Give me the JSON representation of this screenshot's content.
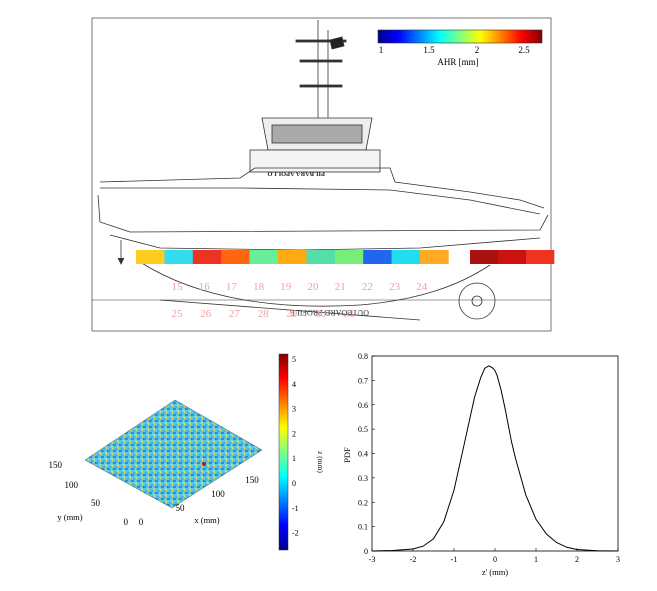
{
  "panel_a": {
    "ship_name": "PILBARA APOLLO",
    "drawing_caption": "OUTBOARD PROFILE",
    "colorbar": {
      "label": "AHR [mm]",
      "ticks": [
        "1",
        "1.5",
        "2",
        "2.5"
      ],
      "range": [
        1,
        2.6
      ]
    },
    "regions_row_top": [
      {
        "id": "15",
        "color": "#ffcc22"
      },
      {
        "id": "16",
        "color": "#33ddee"
      },
      {
        "id": "17",
        "color": "#ee3322"
      },
      {
        "id": "18",
        "color": "#ff6611"
      },
      {
        "id": "19",
        "color": "#66ee99"
      },
      {
        "id": "20",
        "color": "#ffaa11"
      },
      {
        "id": "21",
        "color": "#55ddaa"
      },
      {
        "id": "22",
        "color": "#77ee77"
      },
      {
        "id": "23",
        "color": "#2266ee"
      },
      {
        "id": "24",
        "color": "#22ddee"
      },
      {
        "id": "24b",
        "color": "#ffaa22"
      }
    ],
    "regions_row_bottom": [
      "25",
      "26",
      "27",
      "28",
      "29",
      "30",
      "31"
    ],
    "stern_blocks": [
      "#aa1111",
      "#cc1111",
      "#ee3322"
    ],
    "label_color": "#f0a0a0"
  },
  "panel_b": {
    "xlabel": "x (mm)",
    "ylabel": "y (mm)",
    "x_ticks": [
      "0",
      "50",
      "100",
      "150"
    ],
    "y_ticks": [
      "0",
      "50",
      "100",
      "150"
    ],
    "colorbar": {
      "label": "z (mm)",
      "ticks": [
        "5",
        "4",
        "3",
        "2",
        "1",
        "0",
        "-1",
        "-2"
      ],
      "range": [
        -2.7,
        5.2
      ]
    }
  },
  "chart_data": {
    "type": "line",
    "xlabel": "z' (mm)",
    "ylabel": "PDF",
    "xlim": [
      -3,
      3
    ],
    "ylim": [
      0,
      0.8
    ],
    "x_ticks": [
      "-3",
      "-2",
      "-1",
      "0",
      "1",
      "2",
      "3"
    ],
    "y_ticks": [
      "0",
      "0.1",
      "0.2",
      "0.3",
      "0.4",
      "0.5",
      "0.6",
      "0.7",
      "0.8"
    ],
    "series": [
      {
        "x": [
          -3,
          -2.5,
          -2,
          -1.75,
          -1.5,
          -1.25,
          -1,
          -0.75,
          -0.5,
          -0.35,
          -0.25,
          -0.15,
          -0.05,
          0,
          0.05,
          0.15,
          0.25,
          0.4,
          0.5,
          0.75,
          1,
          1.25,
          1.5,
          1.75,
          2,
          2.5,
          3
        ],
        "y": [
          0.0,
          0.002,
          0.008,
          0.02,
          0.05,
          0.12,
          0.25,
          0.44,
          0.63,
          0.71,
          0.75,
          0.76,
          0.75,
          0.74,
          0.72,
          0.66,
          0.58,
          0.45,
          0.38,
          0.23,
          0.13,
          0.07,
          0.035,
          0.015,
          0.006,
          0.001,
          0.0
        ]
      }
    ],
    "grid": false
  },
  "colors": {
    "hull_line": "#333333",
    "axis": "#000000",
    "curve": "#000000"
  }
}
